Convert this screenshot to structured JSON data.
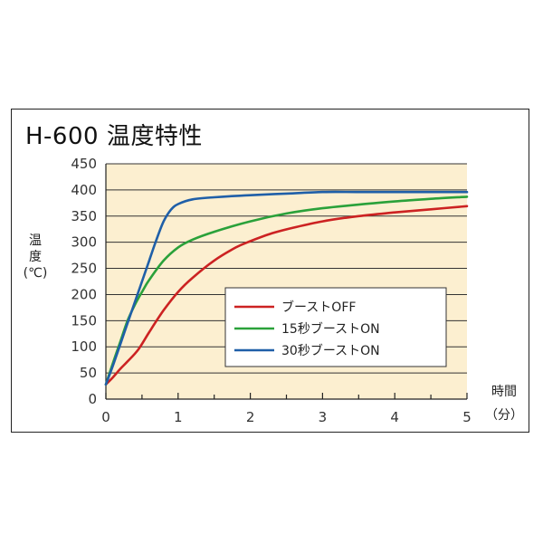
{
  "title": "H-600 温度特性",
  "chart_data": {
    "type": "line",
    "title": "H-600 温度特性",
    "ylabel_lines": [
      "温",
      "度",
      "(℃)"
    ],
    "xlabel_lines": [
      "時間",
      "（分）"
    ],
    "xlim": [
      0,
      5
    ],
    "ylim": [
      0,
      450
    ],
    "x_ticks": [
      0,
      1,
      2,
      3,
      4,
      5
    ],
    "y_ticks": [
      0,
      50,
      100,
      150,
      200,
      250,
      300,
      350,
      400,
      450
    ],
    "grid": "horizontal",
    "background": "#fcefd0",
    "legend_position": "center-right",
    "series": [
      {
        "name": "ブーストOFF",
        "color": "#cc2222",
        "x": [
          0,
          0.1,
          0.2,
          0.3,
          0.45,
          0.6,
          0.8,
          1.0,
          1.2,
          1.5,
          1.8,
          2.0,
          2.3,
          2.6,
          3.0,
          3.5,
          4.0,
          4.5,
          5.0
        ],
        "y": [
          28,
          42,
          58,
          72,
          95,
          128,
          170,
          205,
          232,
          265,
          290,
          302,
          317,
          328,
          340,
          350,
          357,
          363,
          369
        ]
      },
      {
        "name": "15秒ブーストON",
        "color": "#2aa13a",
        "x": [
          0,
          0.1,
          0.2,
          0.3,
          0.4,
          0.5,
          0.6,
          0.8,
          1.0,
          1.2,
          1.5,
          2.0,
          2.5,
          3.0,
          3.5,
          4.0,
          4.5,
          5.0
        ],
        "y": [
          28,
          70,
          110,
          150,
          180,
          205,
          228,
          265,
          290,
          305,
          320,
          340,
          355,
          365,
          372,
          378,
          383,
          387
        ]
      },
      {
        "name": "30秒ブーストON",
        "color": "#1f5fa8",
        "x": [
          0,
          0.1,
          0.2,
          0.3,
          0.4,
          0.5,
          0.6,
          0.7,
          0.8,
          0.9,
          1.0,
          1.2,
          1.5,
          2.0,
          2.5,
          3.0,
          3.5,
          4.0,
          4.5,
          5.0
        ],
        "y": [
          28,
          65,
          105,
          145,
          185,
          225,
          265,
          305,
          340,
          362,
          373,
          382,
          386,
          390,
          393,
          396,
          396,
          396,
          396,
          396
        ]
      }
    ]
  }
}
